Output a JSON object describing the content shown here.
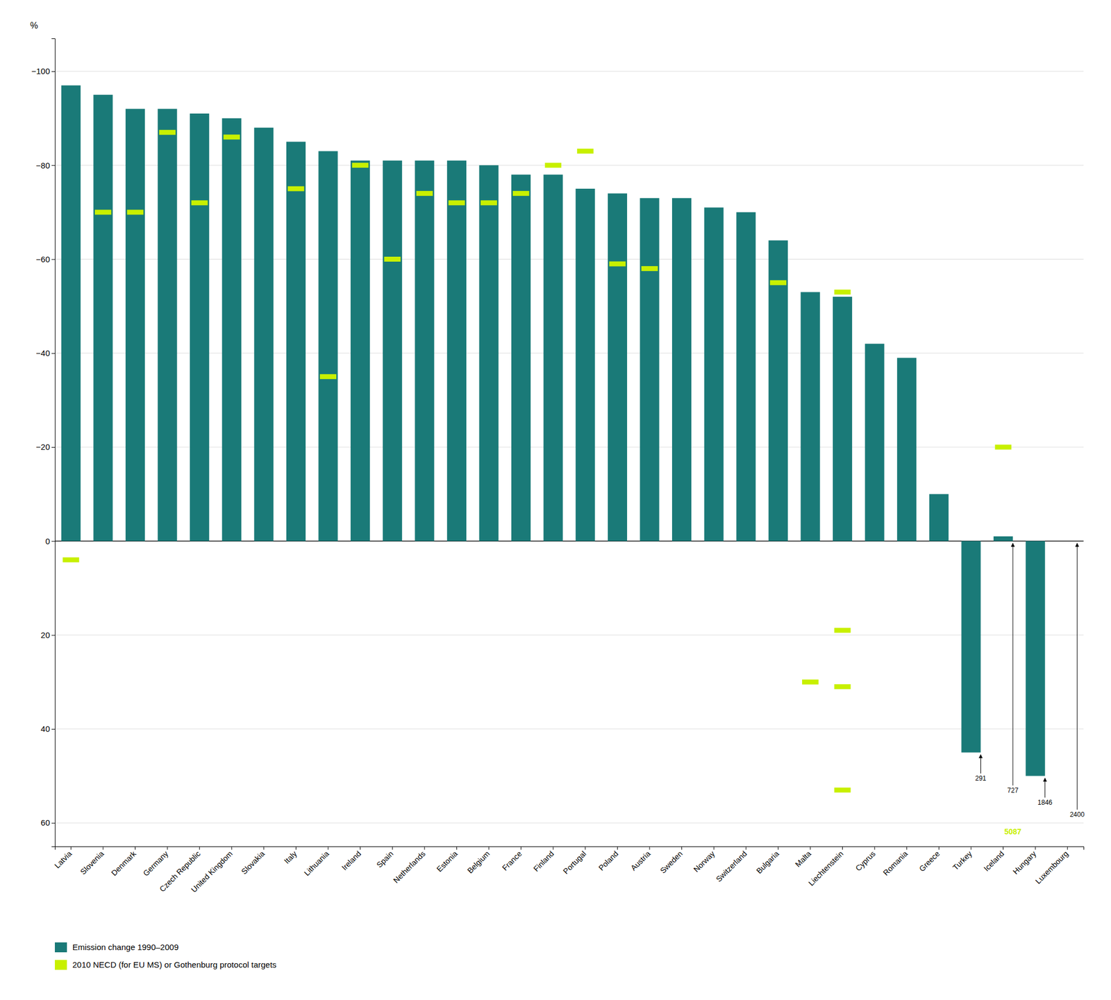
{
  "chart_data": {
    "type": "bar",
    "y_label": "%",
    "categories": [
      "Latvia",
      "Slovenia",
      "Denmark",
      "Germany",
      "Czech Republic",
      "United Kingdom",
      "Slovakia",
      "Italy",
      "Lithuania",
      "Ireland",
      "Spain",
      "Netherlands",
      "Estonia",
      "Belgium",
      "France",
      "Finland",
      "Portugal",
      "Poland",
      "Austria",
      "Sweden",
      "Norway",
      "Switzerland",
      "Bulgaria",
      "Malta",
      "Liechtenstein",
      "Cyprus",
      "Romania",
      "Greece",
      "Turkey",
      "Iceland",
      "Hungary",
      "Luxembourg"
    ],
    "series": [
      {
        "name": "Emission change 1990–2009",
        "type": "bar",
        "color": "#1a7a78",
        "values": [
          -97,
          -95,
          -92,
          -92,
          -91,
          -90,
          -88,
          -85,
          -83,
          -81,
          -81,
          -81,
          -81,
          -80,
          -78,
          -78,
          -75,
          -74,
          -73,
          -73,
          -71,
          -70,
          -64,
          -53,
          -52,
          -42,
          -39,
          -10,
          45,
          -1,
          50,
          0
        ]
      },
      {
        "name": "2010 NECD (for EU MS) or Gothenburg protocol targets",
        "type": "target",
        "color": "#c8f000",
        "values": [
          4,
          -70,
          -70,
          -87,
          -72,
          -86,
          null,
          -75,
          -35,
          -80,
          -60,
          -74,
          -72,
          -72,
          -74,
          -80,
          -83,
          -59,
          -58,
          null,
          null,
          null,
          -55,
          null,
          -53,
          null,
          null,
          null,
          null,
          -20,
          null,
          null
        ],
        "extra_targets": [
          {
            "category": "Malta",
            "values": [
              30
            ]
          },
          {
            "category": "Liechtenstein",
            "values": [
              19,
              31,
              53
            ]
          }
        ]
      }
    ],
    "annotations": [
      {
        "text": "291",
        "category": "Turkey"
      },
      {
        "text": "727",
        "category": "Iceland"
      },
      {
        "text": "1846",
        "category": "Hungary"
      },
      {
        "text": "2400",
        "category": "Luxembourg"
      },
      {
        "text": "5087",
        "category": "Iceland",
        "color": "#c8f000"
      }
    ],
    "ylim": [
      65,
      -107
    ],
    "yticks": [
      {
        "value": -100,
        "label": "−100"
      },
      {
        "value": -80,
        "label": "−80"
      },
      {
        "value": -60,
        "label": "−60"
      },
      {
        "value": -40,
        "label": "−40"
      },
      {
        "value": -20,
        "label": "−20"
      },
      0,
      20,
      40,
      60
    ],
    "grid": true,
    "legend": "lower left"
  }
}
